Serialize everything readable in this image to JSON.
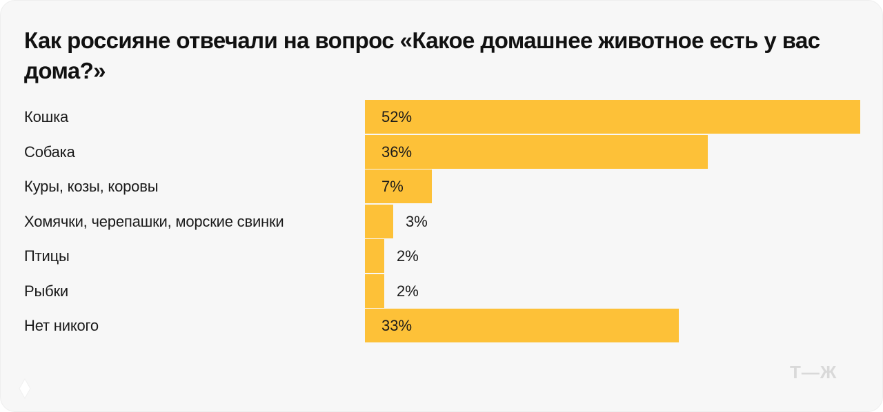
{
  "title": "Как россияне отвечали на вопрос «Какое домашнее животное есть у вас дома?»",
  "logo": "Т—Ж",
  "colors": {
    "bar": "#fdc138",
    "background": "#f7f7f7",
    "text": "#111111",
    "logo": "#d9d9d9"
  },
  "rows": [
    {
      "label": "Кошка",
      "value": "52%"
    },
    {
      "label": "Собака",
      "value": "36%"
    },
    {
      "label": "Куры, козы, коровы",
      "value": "7%"
    },
    {
      "label": "Хомячки, черепашки, морские свинки",
      "value": "3%"
    },
    {
      "label": "Птицы",
      "value": "2%"
    },
    {
      "label": "Рыбки",
      "value": "2%"
    },
    {
      "label": "Нет никого",
      "value": "33%"
    }
  ],
  "chart_data": {
    "type": "bar",
    "orientation": "horizontal",
    "title": "Как россияне отвечали на вопрос «Какое домашнее животное есть у вас дома?»",
    "categories": [
      "Кошка",
      "Собака",
      "Куры, козы, коровы",
      "Хомячки, черепашки, морские свинки",
      "Птицы",
      "Рыбки",
      "Нет никого"
    ],
    "values": [
      52,
      36,
      7,
      3,
      2,
      2,
      33
    ],
    "value_labels": [
      "52%",
      "36%",
      "7%",
      "3%",
      "2%",
      "2%",
      "33%"
    ],
    "unit": "%",
    "xlabel": "",
    "ylabel": "",
    "grid": false,
    "legend": null,
    "bar_color": "#fdc138"
  }
}
